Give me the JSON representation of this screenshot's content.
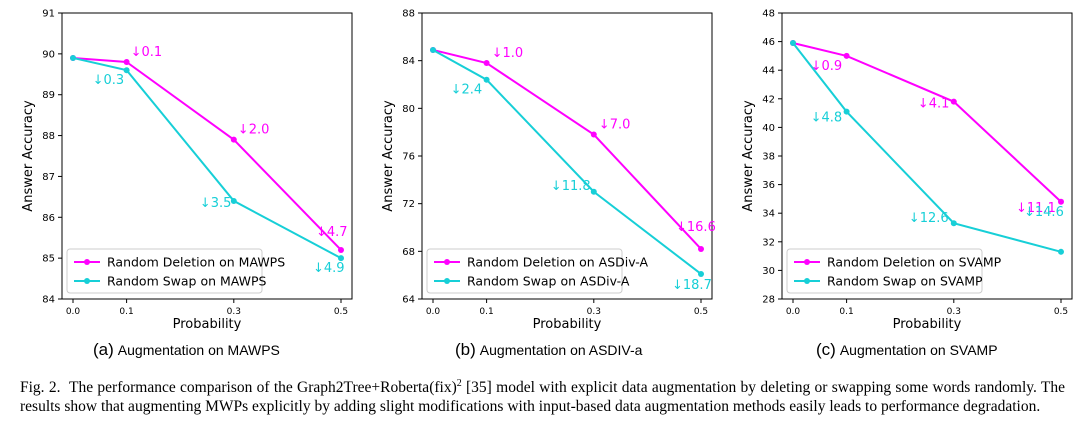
{
  "chart_data": [
    {
      "type": "line",
      "caption_tag": "(a)",
      "caption": "Augmentation on MAWPS",
      "xlabel": "Probability",
      "ylabel": "Answer Accuracy",
      "x": [
        0.0,
        0.1,
        0.3,
        0.5
      ],
      "x_tick_labels": [
        "0.0",
        "0.1",
        "0.3",
        "0.5"
      ],
      "ylim": [
        84,
        91
      ],
      "y_ticks": [
        84,
        85,
        86,
        87,
        88,
        89,
        90,
        91
      ],
      "legend_position": "bottom-left",
      "series": [
        {
          "name": "Random Deletion on MAWPS",
          "color": "#ff00ff",
          "values": [
            89.9,
            89.8,
            87.9,
            85.2
          ],
          "annotations": [
            "",
            "↓0.1",
            "↓2.0",
            "↓4.7"
          ]
        },
        {
          "name": "Random Swap on MAWPS",
          "color": "#17cfd7",
          "values": [
            89.9,
            89.6,
            86.4,
            85.0
          ],
          "annotations": [
            "",
            "↓0.3",
            "↓3.5",
            "↓4.9"
          ]
        }
      ]
    },
    {
      "type": "line",
      "caption_tag": "(b)",
      "caption": "Augmentation on ASDIV-a",
      "xlabel": "Probability",
      "ylabel": "Answer Accuracy",
      "x": [
        0.0,
        0.1,
        0.3,
        0.5
      ],
      "x_tick_labels": [
        "0.0",
        "0.1",
        "0.3",
        "0.5"
      ],
      "ylim": [
        64,
        88
      ],
      "y_ticks": [
        64,
        68,
        72,
        76,
        80,
        84,
        88
      ],
      "legend_position": "bottom-left",
      "series": [
        {
          "name": "Random Deletion on ASDiv-A",
          "color": "#ff00ff",
          "values": [
            84.9,
            83.8,
            77.8,
            68.2
          ],
          "annotations": [
            "",
            "↓1.0",
            "↓7.0",
            "↓16.6"
          ]
        },
        {
          "name": "Random Swap on ASDiv-A",
          "color": "#17cfd7",
          "values": [
            84.9,
            82.4,
            73.0,
            66.1
          ],
          "annotations": [
            "",
            "↓2.4",
            "↓11.8",
            "↓18.7"
          ]
        }
      ]
    },
    {
      "type": "line",
      "caption_tag": "(c)",
      "caption": "Augmentation on SVAMP",
      "xlabel": "Probability",
      "ylabel": "Answer Accuracy",
      "x": [
        0.0,
        0.1,
        0.3,
        0.5
      ],
      "x_tick_labels": [
        "0.0",
        "0.1",
        "0.3",
        "0.5"
      ],
      "ylim": [
        28,
        48
      ],
      "y_ticks": [
        28,
        30,
        32,
        34,
        36,
        38,
        40,
        42,
        44,
        46,
        48
      ],
      "legend_position": "bottom-left",
      "series": [
        {
          "name": "Random Deletion on SVAMP",
          "color": "#ff00ff",
          "values": [
            45.9,
            45.0,
            41.8,
            34.8
          ],
          "annotations": [
            "",
            "↓0.9",
            "↓4.1",
            "↓11.1"
          ]
        },
        {
          "name": "Random Swap on SVAMP",
          "color": "#17cfd7",
          "values": [
            45.9,
            41.1,
            33.3,
            31.3
          ],
          "annotations": [
            "",
            "↓4.8",
            "↓12.6",
            "↓14.6"
          ]
        }
      ]
    }
  ],
  "figure_caption": {
    "label": "Fig. 2.",
    "text_before_sup": "The performance comparison of the Graph2Tree+Roberta(fix)",
    "superscript": "2",
    "text_after_sup": " [35] model with explicit data augmentation by deleting or swapping some words randomly. The results show that augmenting MWPs explicitly by adding slight modifications with input-based data augmentation methods easily leads to performance degradation."
  }
}
